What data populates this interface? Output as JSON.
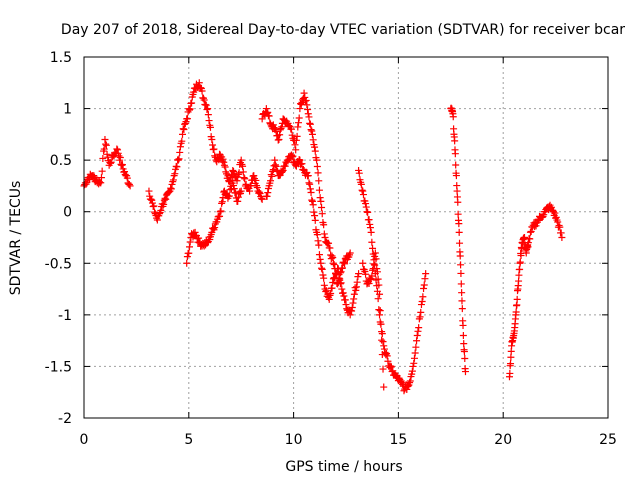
{
  "chart_data": {
    "type": "scatter",
    "title": "Day 207 of 2018, Sidereal Day-to-day VTEC variation (SDTVAR) for receiver bcar",
    "xlabel": "GPS time / hours",
    "ylabel": "SDTVAR / TECUs",
    "xlim": [
      0,
      25
    ],
    "ylim": [
      -2,
      1.5
    ],
    "xticks": [
      "0",
      "5",
      "10",
      "15",
      "20",
      "25"
    ],
    "yticks": [
      "1.5",
      "1",
      "0.5",
      "0",
      "-0.5",
      "-1",
      "-1.5",
      "-2"
    ],
    "grid": true,
    "marker": "+",
    "colors": {
      "series": "#ff0000",
      "grid": "#a0a0a0",
      "axis": "#000000"
    },
    "series": [
      {
        "name": "SDTVAR",
        "segments": [
          {
            "x": [
              0.0,
              0.2,
              0.4,
              0.6,
              0.8,
              1.0,
              1.2,
              1.4,
              1.6,
              1.8,
              2.0,
              2.2
            ],
            "y": [
              0.25,
              0.33,
              0.35,
              0.3,
              0.28,
              0.7,
              0.45,
              0.55,
              0.6,
              0.45,
              0.35,
              0.25
            ]
          },
          {
            "x": [
              3.1,
              3.3,
              3.5,
              3.7,
              3.9,
              4.1,
              4.3,
              4.5,
              4.7,
              4.9,
              5.1,
              5.3,
              5.5,
              5.7,
              5.9,
              6.1,
              6.3,
              6.5,
              6.7,
              6.9,
              7.1,
              7.3,
              7.5,
              7.7,
              7.9,
              8.1,
              8.3,
              8.5
            ],
            "y": [
              0.2,
              0.05,
              -0.08,
              0.05,
              0.12,
              0.2,
              0.35,
              0.5,
              0.75,
              0.9,
              1.05,
              1.2,
              1.25,
              1.1,
              1.0,
              0.7,
              0.5,
              0.55,
              0.45,
              0.3,
              0.4,
              0.3,
              0.5,
              0.25,
              0.2,
              0.35,
              0.2,
              0.12
            ]
          },
          {
            "x": [
              4.9,
              5.1,
              5.3,
              5.5,
              5.7,
              5.9,
              6.1,
              6.3,
              6.5,
              6.7,
              6.9,
              7.1,
              7.3,
              7.5
            ],
            "y": [
              -0.5,
              -0.25,
              -0.2,
              -0.3,
              -0.32,
              -0.3,
              -0.2,
              -0.1,
              0.0,
              0.2,
              0.15,
              0.3,
              0.1,
              0.2
            ]
          },
          {
            "x": [
              8.5,
              8.7,
              8.9,
              9.1,
              9.3,
              9.5,
              9.7,
              9.9,
              10.1,
              10.3,
              10.5,
              10.7,
              10.9,
              11.1,
              11.3,
              11.5,
              11.7,
              11.9,
              12.1,
              12.3,
              12.5,
              12.7
            ],
            "y": [
              0.9,
              1.0,
              0.85,
              0.8,
              0.7,
              0.9,
              0.85,
              0.8,
              0.6,
              1.0,
              1.15,
              0.95,
              0.75,
              0.5,
              0.1,
              -0.25,
              -0.35,
              -0.5,
              -0.7,
              -0.55,
              -0.45,
              -0.4
            ]
          },
          {
            "x": [
              8.7,
              8.9,
              9.1,
              9.3,
              9.5,
              9.7,
              9.9,
              10.1,
              10.3,
              10.5,
              10.7,
              10.9,
              11.1,
              11.3,
              11.5,
              11.7,
              11.9,
              12.1,
              12.3,
              12.5,
              12.7,
              12.9,
              13.1
            ],
            "y": [
              0.15,
              0.3,
              0.5,
              0.35,
              0.4,
              0.5,
              0.55,
              0.45,
              0.5,
              0.4,
              0.35,
              0.1,
              -0.2,
              -0.5,
              -0.75,
              -0.85,
              -0.65,
              -0.55,
              -0.75,
              -0.9,
              -1.0,
              -0.8,
              -0.6
            ]
          },
          {
            "x": [
              13.1,
              13.3,
              13.5,
              13.7,
              13.9,
              14.1,
              14.3,
              14.5,
              14.7,
              14.9,
              15.1,
              15.3,
              15.5,
              15.7,
              15.9,
              16.1,
              16.3
            ],
            "y": [
              0.4,
              0.2,
              0.0,
              -0.2,
              -0.6,
              -1.0,
              -1.3,
              -1.45,
              -1.55,
              -1.6,
              -1.65,
              -1.72,
              -1.68,
              -1.5,
              -1.2,
              -0.9,
              -0.6
            ]
          },
          {
            "x": [
              13.3,
              13.5,
              13.7,
              13.9,
              14.1,
              14.3
            ],
            "y": [
              -0.5,
              -0.7,
              -0.65,
              -0.4,
              -0.8,
              -1.7
            ]
          },
          {
            "x": [
              17.5,
              17.6,
              17.7,
              17.8,
              17.9,
              18.0,
              18.1,
              18.2
            ],
            "y": [
              1.0,
              0.95,
              0.6,
              0.2,
              -0.2,
              -0.7,
              -1.2,
              -1.55
            ]
          },
          {
            "x": [
              20.3,
              20.4,
              20.5,
              20.6,
              20.7,
              20.8,
              20.9,
              21.0,
              21.1,
              21.2,
              21.4,
              21.6,
              21.8,
              22.0,
              22.2,
              22.4,
              22.6,
              22.8
            ],
            "y": [
              -1.6,
              -1.3,
              -1.2,
              -1.0,
              -0.75,
              -0.5,
              -0.3,
              -0.25,
              -0.4,
              -0.3,
              -0.15,
              -0.1,
              -0.05,
              0.0,
              0.05,
              0.0,
              -0.1,
              -0.25
            ]
          }
        ]
      }
    ]
  }
}
